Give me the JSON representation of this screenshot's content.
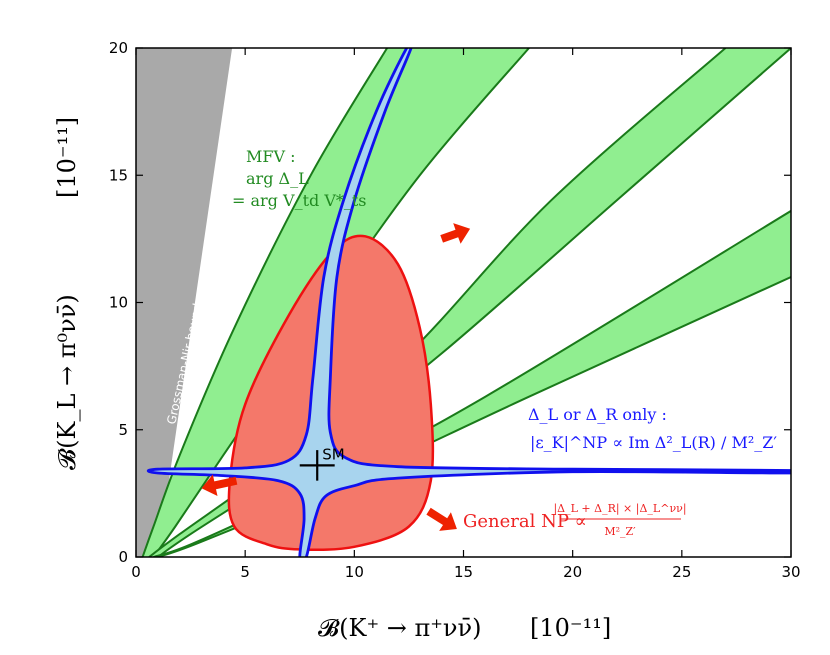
{
  "chart_data": {
    "type": "area",
    "xlabel_main": "𝓑(K⁺ → π⁺νν̄)",
    "xlabel_unit": "[10⁻¹¹]",
    "ylabel_main": "𝓑(K_L → π⁰νν̄)",
    "ylabel_unit": "[10⁻¹¹]",
    "xlim": [
      0,
      30
    ],
    "ylim": [
      0,
      20
    ],
    "xticks": [
      0,
      5,
      10,
      15,
      20,
      25,
      30
    ],
    "yticks": [
      0,
      5,
      10,
      15,
      20
    ],
    "grid": false,
    "colors": {
      "gray_region": "#a9a9a9",
      "green_fill": "#90ee90",
      "green_line": "#1a7a1a",
      "red_fill": "#f4786a",
      "red_line": "#ee1111",
      "blue_line": "#1010ee",
      "blue_fill": "#a8d4ee",
      "arrow": "#ee2200"
    },
    "grossman_nir": {
      "label": "Grossman-Nir bound",
      "polygon": [
        [
          0,
          0
        ],
        [
          1.0,
          0
        ],
        [
          4.4,
          20
        ],
        [
          0,
          20
        ]
      ]
    },
    "mfv_bands": [
      {
        "lower": [
          [
            0.8,
            0
          ],
          [
            1.8,
            1.2
          ],
          [
            4,
            4
          ],
          [
            8,
            9
          ],
          [
            13,
            15
          ],
          [
            18,
            20
          ]
        ],
        "upper": [
          [
            0.3,
            0
          ],
          [
            0.8,
            1.2
          ],
          [
            2,
            4
          ],
          [
            4.5,
            9
          ],
          [
            8,
            15
          ],
          [
            11.5,
            20
          ]
        ]
      },
      {
        "lower": [
          [
            1.0,
            0
          ],
          [
            2.5,
            0.9
          ],
          [
            8,
            4
          ],
          [
            14,
            8
          ],
          [
            22,
            14
          ],
          [
            30,
            20
          ]
        ],
        "upper": [
          [
            0.6,
            0
          ],
          [
            2.0,
            0.9
          ],
          [
            7,
            4
          ],
          [
            12.5,
            8
          ],
          [
            19,
            14
          ],
          [
            27,
            20
          ]
        ]
      },
      {
        "lower": [
          [
            1.0,
            0
          ],
          [
            3,
            0.6
          ],
          [
            10,
            3.1
          ],
          [
            18,
            6.3
          ],
          [
            30,
            11
          ]
        ],
        "upper": [
          [
            0.8,
            0
          ],
          [
            2.8,
            0.6
          ],
          [
            9,
            3.1
          ],
          [
            16,
            6.3
          ],
          [
            30,
            13.6
          ]
        ]
      }
    ],
    "general_np_region": [
      [
        7.5,
        0.3
      ],
      [
        10,
        0.4
      ],
      [
        12.5,
        1.2
      ],
      [
        13.5,
        3
      ],
      [
        13.5,
        6
      ],
      [
        13,
        9
      ],
      [
        12,
        11.5
      ],
      [
        10.5,
        12.6
      ],
      [
        9,
        12
      ],
      [
        7,
        9.5
      ],
      [
        5,
        6
      ],
      [
        4.3,
        3
      ],
      [
        4.5,
        1.2
      ],
      [
        6,
        0.5
      ]
    ],
    "cross_region": [
      [
        7.5,
        0
      ],
      [
        7.7,
        1.5
      ],
      [
        7.5,
        2.5
      ],
      [
        6.5,
        3.0
      ],
      [
        4,
        3.2
      ],
      [
        1.0,
        3.3
      ],
      [
        1.0,
        3.45
      ],
      [
        5,
        3.5
      ],
      [
        7.0,
        3.8
      ],
      [
        7.8,
        4.8
      ],
      [
        8.1,
        7
      ],
      [
        8.6,
        11
      ],
      [
        9.5,
        14
      ],
      [
        11,
        17.5
      ],
      [
        12.4,
        20
      ],
      [
        12.6,
        20
      ],
      [
        11.4,
        17.5
      ],
      [
        10.0,
        14
      ],
      [
        9.2,
        11
      ],
      [
        8.9,
        7
      ],
      [
        8.9,
        4.9
      ],
      [
        9.6,
        3.9
      ],
      [
        12,
        3.55
      ],
      [
        20,
        3.45
      ],
      [
        30,
        3.4
      ],
      [
        30,
        3.3
      ],
      [
        20,
        3.35
      ],
      [
        12,
        3.1
      ],
      [
        10.0,
        2.8
      ],
      [
        8.7,
        2.4
      ],
      [
        8.2,
        1.5
      ],
      [
        7.8,
        0
      ]
    ],
    "sm_point": {
      "label": "SM",
      "x": 8.3,
      "y": 3.6,
      "xerr": 0.8,
      "yerr": 0.6
    },
    "arrows": [
      {
        "from": [
          14,
          12.5
        ],
        "to": [
          15.3,
          12.9
        ]
      },
      {
        "from": [
          4.6,
          3.0
        ],
        "to": [
          3.0,
          2.7
        ]
      },
      {
        "from": [
          13.4,
          1.8
        ],
        "to": [
          14.7,
          1.1
        ]
      }
    ],
    "annotations": {
      "mfv_line1": "MFV :",
      "mfv_line2": "arg Δ_L",
      "mfv_line3": "= arg V_td V*_ts",
      "dl_line1": "Δ_L  or  Δ_R  only :",
      "dl_line2": "|ε_K|^NP ∝ Im Δ²_L(R) / M²_Z′",
      "np_main": "General NP  ∝",
      "np_numerator": "|Δ_L + Δ_R| × |Δ_L^νν|",
      "np_denominator": "M²_Z′"
    }
  }
}
